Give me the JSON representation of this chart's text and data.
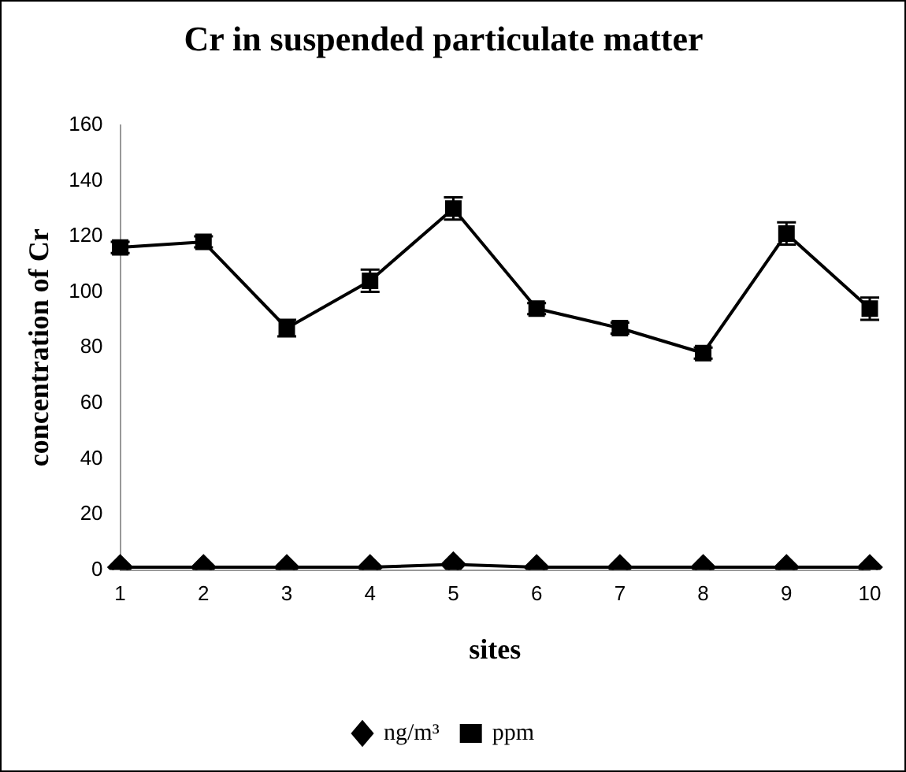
{
  "chart_data": {
    "type": "line",
    "title": "Cr in suspended particulate matter",
    "xlabel": "sites",
    "ylabel": "concentration of Cr",
    "categories": [
      "1",
      "2",
      "3",
      "4",
      "5",
      "6",
      "7",
      "8",
      "9",
      "10"
    ],
    "series": [
      {
        "name": "ng/m³",
        "color": "#000000",
        "marker": "diamond",
        "values": [
          1,
          1,
          1,
          1,
          2,
          1,
          1,
          1,
          1,
          1
        ]
      },
      {
        "name": "ppm",
        "color": "#000000",
        "marker": "square",
        "values": [
          116,
          118,
          87,
          104,
          130,
          94,
          87,
          78,
          121,
          94
        ],
        "errors": [
          2,
          2,
          3,
          4,
          4,
          2,
          2,
          2,
          4,
          4
        ]
      }
    ],
    "ylim": [
      0,
      160
    ],
    "yticks": [
      0,
      20,
      40,
      60,
      80,
      100,
      120,
      140,
      160
    ],
    "grid": false,
    "legend": "bottom"
  }
}
